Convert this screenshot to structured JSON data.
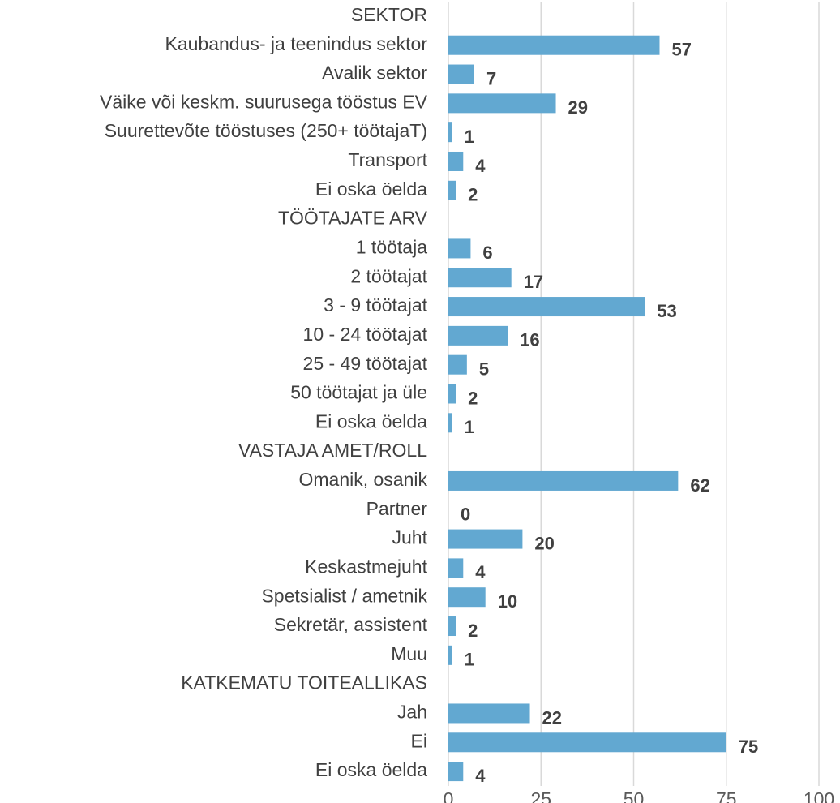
{
  "chart_data": {
    "type": "barh",
    "categories": [
      "SEKTOR",
      "Kaubandus- ja teenindus sektor",
      "Avalik sektor",
      "Väike või keskm. suurusega tööstus EV",
      "Suurettevõte tööstuses (250+ töötajaT)",
      "Transport",
      "Ei oska öelda",
      "TÖÖTAJATE ARV",
      "1 töötaja",
      "2 töötajat",
      "3 - 9 töötajat",
      "10 - 24 töötajat",
      "25 - 49 töötajat",
      "50 töötajat ja üle",
      "Ei oska öelda",
      "VASTAJA AMET/ROLL",
      "Omanik, osanik",
      "Partner",
      "Juht",
      "Keskastmejuht",
      "Spetsialist / ametnik",
      "Sekretär, assistent",
      "Muu",
      "KATKEMATU TOITEALLIKAS",
      "Jah",
      "Ei",
      "Ei oska öelda"
    ],
    "values": [
      null,
      57,
      7,
      29,
      1,
      4,
      2,
      null,
      6,
      17,
      53,
      16,
      5,
      2,
      1,
      null,
      62,
      0,
      20,
      4,
      10,
      2,
      1,
      null,
      22,
      75,
      4
    ],
    "color": "#62a8d1",
    "xlim": [
      0,
      100
    ],
    "xticks": [
      0,
      25,
      50,
      75,
      100
    ],
    "grid": true
  }
}
